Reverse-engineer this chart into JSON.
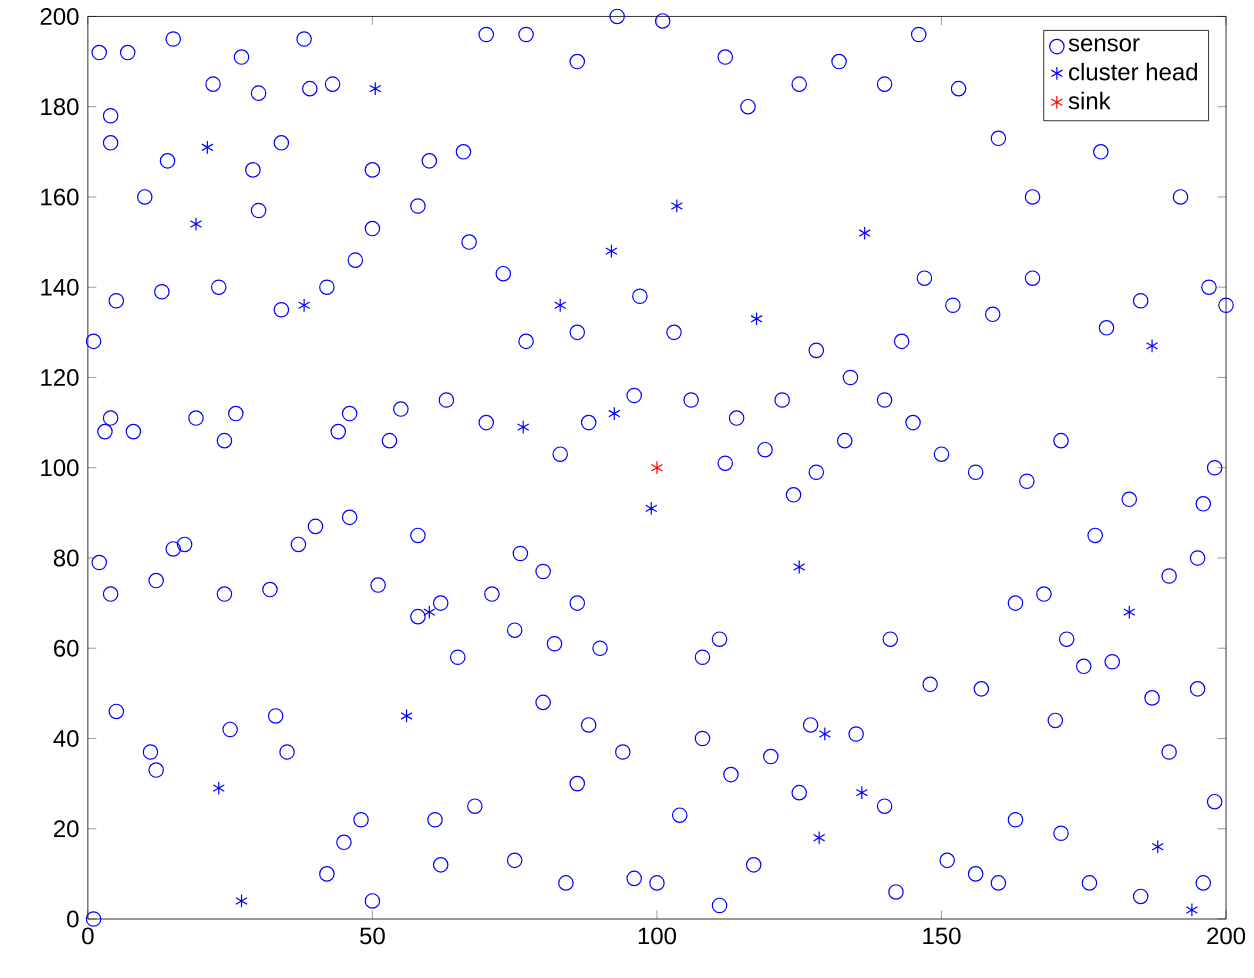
{
  "chart_data": {
    "type": "scatter",
    "xlim": [
      0,
      200
    ],
    "ylim": [
      0,
      200
    ],
    "xticks": [
      0,
      50,
      100,
      150,
      200
    ],
    "yticks": [
      0,
      20,
      40,
      60,
      80,
      100,
      120,
      140,
      160,
      180,
      200
    ],
    "legend": "top right",
    "series": [
      {
        "name": "sensor",
        "color": "#0000ff",
        "marker": "circle",
        "x": [
          2,
          7,
          4,
          4,
          10,
          14,
          15,
          22,
          27,
          30,
          34,
          29,
          30,
          39,
          38,
          43,
          50,
          50,
          47,
          42,
          34,
          23,
          13,
          5,
          3,
          1,
          4,
          8,
          19,
          26,
          24,
          15,
          17,
          12,
          24,
          32,
          37,
          40,
          46,
          46,
          44,
          53,
          58,
          51,
          58,
          62,
          65,
          71,
          76,
          80,
          75,
          82,
          86,
          90,
          88,
          80,
          86,
          94,
          96,
          100,
          104,
          108,
          108,
          111,
          113,
          117,
          120,
          125,
          127,
          135,
          141,
          148,
          157,
          156,
          163,
          168,
          172,
          175,
          180,
          187,
          195,
          190,
          195,
          198,
          196,
          183,
          177,
          171,
          165,
          156,
          150,
          145,
          140,
          133,
          128,
          124,
          119,
          112,
          114,
          122,
          128,
          134,
          143,
          147,
          152,
          159,
          166,
          179,
          185,
          197,
          200,
          192,
          178,
          166,
          160,
          153,
          146,
          140,
          132,
          125,
          116,
          112,
          101,
          93,
          86,
          77,
          70,
          66,
          60,
          58,
          67,
          73,
          77,
          86,
          97,
          103,
          106,
          96,
          88,
          83,
          70,
          63,
          55,
          33,
          35,
          25,
          11,
          12,
          5,
          2,
          4,
          1,
          42,
          50,
          61,
          68,
          75,
          48,
          45,
          62,
          84,
          142,
          151,
          160,
          171,
          176,
          185,
          196,
          198,
          190,
          170,
          163,
          140,
          111
        ],
        "values": [
          192,
          192,
          178,
          172,
          160,
          168,
          195,
          185,
          191,
          183,
          172,
          166,
          157,
          184,
          195,
          185,
          166,
          153,
          146,
          140,
          135,
          140,
          139,
          137,
          108,
          128,
          111,
          108,
          111,
          112,
          106,
          82,
          83,
          75,
          72,
          73,
          83,
          87,
          89,
          112,
          108,
          106,
          85,
          74,
          67,
          70,
          58,
          72,
          81,
          77,
          64,
          61,
          70,
          60,
          43,
          48,
          30,
          37,
          9,
          8,
          23,
          40,
          58,
          62,
          32,
          12,
          36,
          28,
          43,
          41,
          62,
          52,
          51,
          10,
          70,
          72,
          62,
          56,
          57,
          49,
          51,
          76,
          80,
          100,
          92,
          93,
          85,
          106,
          97,
          99,
          103,
          110,
          115,
          106,
          99,
          94,
          104,
          101,
          111,
          115,
          126,
          120,
          128,
          142,
          136,
          134,
          142,
          131,
          137,
          140,
          136,
          160,
          170,
          160,
          173,
          184,
          196,
          185,
          190,
          185,
          180,
          191,
          199,
          200,
          190,
          196,
          196,
          170,
          168,
          158,
          150,
          143,
          128,
          130,
          138,
          130,
          115,
          116,
          110,
          103,
          110,
          115,
          113,
          45,
          37,
          42,
          37,
          33,
          46,
          79,
          72,
          0,
          10,
          4,
          22,
          25,
          13,
          22,
          17,
          12,
          8,
          6,
          13,
          8,
          19,
          8,
          5,
          8,
          26,
          37,
          44,
          22,
          25,
          3
        ]
      },
      {
        "name": "cluster head",
        "color": "#0000ff",
        "marker": "cross",
        "x": [
          21,
          19,
          38,
          50.5,
          92,
          103.5,
          136.5,
          83,
          117.5,
          76.5,
          92.5,
          99,
          125,
          183,
          187,
          60,
          56,
          23,
          27,
          128.5,
          136,
          188,
          129.5,
          194
        ],
        "values": [
          171,
          154,
          136,
          184,
          148,
          158,
          152,
          136,
          133,
          109,
          112,
          91,
          78,
          68,
          127,
          68,
          45,
          29,
          4,
          18,
          28,
          16,
          41,
          2
        ]
      },
      {
        "name": "sink",
        "color": "#ff0000",
        "marker": "cross",
        "x": [
          100
        ],
        "values": [
          100
        ]
      }
    ]
  }
}
